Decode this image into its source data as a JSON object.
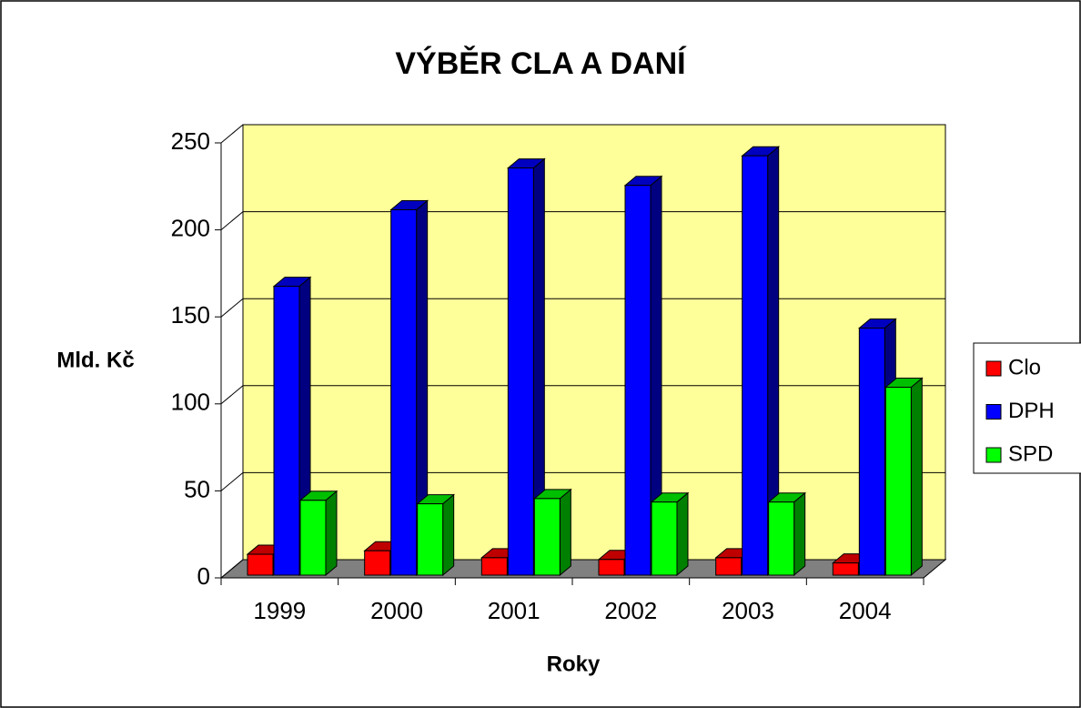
{
  "chart_data": {
    "type": "bar3d",
    "title": "VÝBĚR CLA A DANÍ",
    "ylabel": "Mld. Kč",
    "xlabel": "Roky",
    "categories": [
      "1999",
      "2000",
      "2001",
      "2002",
      "2003",
      "2004"
    ],
    "series": [
      {
        "name": "Clo",
        "color": "#ff0000",
        "values": [
          12,
          14,
          10,
          9,
          10,
          7
        ]
      },
      {
        "name": "DPH",
        "color": "#0000ff",
        "values": [
          166,
          210,
          234,
          224,
          241,
          142
        ]
      },
      {
        "name": "SPD",
        "color": "#00ff00",
        "values": [
          43,
          41,
          44,
          42,
          42,
          108
        ]
      }
    ],
    "ylim": [
      0,
      250
    ],
    "yticks": [
      0,
      50,
      100,
      150,
      200,
      250
    ],
    "grid": true,
    "legend": "right"
  }
}
